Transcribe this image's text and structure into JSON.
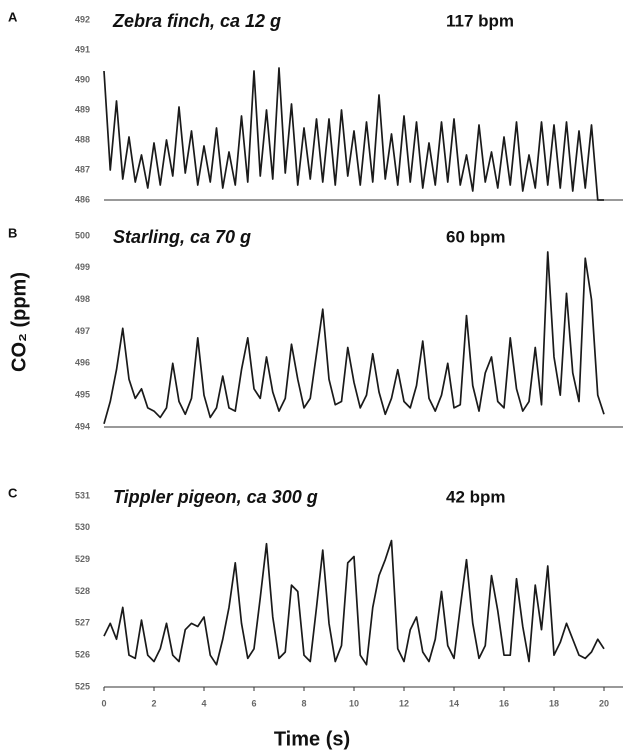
{
  "chart_data": [
    {
      "type": "line",
      "panel": "A",
      "title": "Zebra finch, ca 12 g",
      "annotation": "117 bpm",
      "color": "#1a1a1a",
      "xlim": [
        0,
        20.6
      ],
      "ylim": [
        486,
        492
      ],
      "yticks": [
        486,
        487,
        488,
        489,
        490,
        491,
        492
      ],
      "x": [
        0,
        0.25,
        0.5,
        0.75,
        1,
        1.25,
        1.5,
        1.75,
        2,
        2.25,
        2.5,
        2.75,
        3,
        3.25,
        3.5,
        3.75,
        4,
        4.25,
        4.5,
        4.75,
        5,
        5.25,
        5.5,
        5.75,
        6,
        6.25,
        6.5,
        6.75,
        7,
        7.25,
        7.5,
        7.75,
        8,
        8.25,
        8.5,
        8.75,
        9,
        9.25,
        9.5,
        9.75,
        10,
        10.25,
        10.5,
        10.75,
        11,
        11.25,
        11.5,
        11.75,
        12,
        12.25,
        12.5,
        12.75,
        13,
        13.25,
        13.5,
        13.75,
        14,
        14.25,
        14.5,
        14.75,
        15,
        15.25,
        15.5,
        15.75,
        16,
        16.25,
        16.5,
        16.75,
        17,
        17.25,
        17.5,
        17.75,
        18,
        18.25,
        18.5,
        18.75,
        19,
        19.25,
        19.5,
        19.75,
        20
      ],
      "values": [
        490.3,
        487.0,
        489.3,
        486.7,
        488.1,
        486.6,
        487.5,
        486.4,
        487.9,
        486.5,
        488.0,
        486.8,
        489.1,
        486.9,
        488.3,
        486.5,
        487.8,
        486.6,
        488.4,
        486.4,
        487.6,
        486.5,
        488.8,
        486.6,
        490.3,
        486.8,
        489.0,
        486.7,
        490.4,
        486.9,
        489.2,
        486.5,
        488.4,
        486.7,
        488.7,
        486.6,
        488.7,
        486.5,
        489.0,
        486.8,
        488.3,
        486.5,
        488.6,
        486.6,
        489.5,
        486.7,
        488.2,
        486.5,
        488.8,
        486.6,
        488.6,
        486.4,
        487.9,
        486.5,
        488.6,
        486.6,
        488.7,
        486.5,
        487.5,
        486.3,
        488.5,
        486.6,
        487.6,
        486.4,
        488.1,
        486.5,
        488.6,
        486.3,
        487.5,
        486.4,
        488.6,
        486.5,
        488.5,
        486.4,
        488.6,
        486.3,
        488.3,
        486.4,
        488.5,
        486.0,
        486.0
      ]
    },
    {
      "type": "line",
      "panel": "B",
      "title": "Starling, ca 70 g",
      "annotation": "60 bpm",
      "color": "#1a1a1a",
      "y_label": "CO₂ (ppm)",
      "xlim": [
        0,
        20.6
      ],
      "ylim": [
        494,
        500
      ],
      "yticks": [
        494,
        495,
        496,
        497,
        498,
        499,
        500
      ],
      "x": [
        0,
        0.25,
        0.5,
        0.75,
        1,
        1.25,
        1.5,
        1.75,
        2,
        2.25,
        2.5,
        2.75,
        3,
        3.25,
        3.5,
        3.75,
        4,
        4.25,
        4.5,
        4.75,
        5,
        5.25,
        5.5,
        5.75,
        6,
        6.25,
        6.5,
        6.75,
        7,
        7.25,
        7.5,
        7.75,
        8,
        8.25,
        8.5,
        8.75,
        9,
        9.25,
        9.5,
        9.75,
        10,
        10.25,
        10.5,
        10.75,
        11,
        11.25,
        11.5,
        11.75,
        12,
        12.25,
        12.5,
        12.75,
        13,
        13.25,
        13.5,
        13.75,
        14,
        14.25,
        14.5,
        14.75,
        15,
        15.25,
        15.5,
        15.75,
        16,
        16.25,
        16.5,
        16.75,
        17,
        17.25,
        17.5,
        17.75,
        18,
        18.25,
        18.5,
        18.75,
        19,
        19.25,
        19.5,
        19.75,
        20
      ],
      "values": [
        494.1,
        494.8,
        495.8,
        497.1,
        495.5,
        494.9,
        495.2,
        494.6,
        494.5,
        494.3,
        494.6,
        496.0,
        494.8,
        494.4,
        494.9,
        496.8,
        495.0,
        494.3,
        494.6,
        495.6,
        494.6,
        494.5,
        495.8,
        496.8,
        495.2,
        494.9,
        496.2,
        495.1,
        494.5,
        494.9,
        496.6,
        495.5,
        494.6,
        494.9,
        496.3,
        497.7,
        495.5,
        494.7,
        494.8,
        496.5,
        495.4,
        494.6,
        495.0,
        496.3,
        495.1,
        494.4,
        494.9,
        495.8,
        494.8,
        494.6,
        495.3,
        496.7,
        494.9,
        494.5,
        495.0,
        496.0,
        494.6,
        494.7,
        497.5,
        495.3,
        494.5,
        495.7,
        496.2,
        494.8,
        494.6,
        496.8,
        495.2,
        494.5,
        494.8,
        496.5,
        494.7,
        499.5,
        496.2,
        495.0,
        498.2,
        495.7,
        494.8,
        499.3,
        498.0,
        495.0,
        494.4
      ]
    },
    {
      "type": "line",
      "panel": "C",
      "title": "Tippler pigeon, ca 300 g",
      "annotation": "42 bpm",
      "color": "#1a1a1a",
      "x_label": "Time (s)",
      "xlim": [
        0,
        20.6
      ],
      "xticks": [
        0,
        2,
        4,
        6,
        8,
        10,
        12,
        14,
        16,
        18,
        20
      ],
      "ylim": [
        525,
        531
      ],
      "yticks": [
        525,
        526,
        527,
        528,
        529,
        530,
        531
      ],
      "x": [
        0,
        0.25,
        0.5,
        0.75,
        1,
        1.25,
        1.5,
        1.75,
        2,
        2.25,
        2.5,
        2.75,
        3,
        3.25,
        3.5,
        3.75,
        4,
        4.25,
        4.5,
        4.75,
        5,
        5.25,
        5.5,
        5.75,
        6,
        6.25,
        6.5,
        6.75,
        7,
        7.25,
        7.5,
        7.75,
        8,
        8.25,
        8.5,
        8.75,
        9,
        9.25,
        9.5,
        9.75,
        10,
        10.25,
        10.5,
        10.75,
        11,
        11.25,
        11.5,
        11.75,
        12,
        12.25,
        12.5,
        12.75,
        13,
        13.25,
        13.5,
        13.75,
        14,
        14.25,
        14.5,
        14.75,
        15,
        15.25,
        15.5,
        15.75,
        16,
        16.25,
        16.5,
        16.75,
        17,
        17.25,
        17.5,
        17.75,
        18,
        18.25,
        18.5,
        18.75,
        19,
        19.25,
        19.5,
        19.75,
        20
      ],
      "values": [
        526.6,
        527.0,
        526.5,
        527.5,
        526.0,
        525.9,
        527.1,
        526.0,
        525.8,
        526.2,
        527.0,
        526.0,
        525.8,
        526.8,
        527.0,
        526.9,
        527.2,
        526.0,
        525.7,
        526.5,
        527.5,
        528.9,
        527.0,
        525.9,
        526.2,
        527.8,
        529.5,
        527.2,
        525.9,
        526.1,
        528.2,
        528.0,
        526.0,
        525.8,
        527.5,
        529.3,
        527.0,
        525.8,
        526.3,
        528.9,
        529.1,
        526.0,
        525.7,
        527.5,
        528.5,
        529.0,
        529.6,
        526.2,
        525.8,
        526.8,
        527.2,
        526.1,
        525.8,
        526.5,
        528.0,
        526.3,
        525.9,
        527.5,
        529.0,
        527.0,
        525.9,
        526.3,
        528.5,
        527.4,
        526.0,
        526.0,
        528.4,
        526.9,
        525.8,
        528.2,
        526.8,
        528.8,
        526.0,
        526.4,
        527.0,
        526.5,
        526.0,
        525.9,
        526.1,
        526.5,
        526.2
      ]
    }
  ]
}
